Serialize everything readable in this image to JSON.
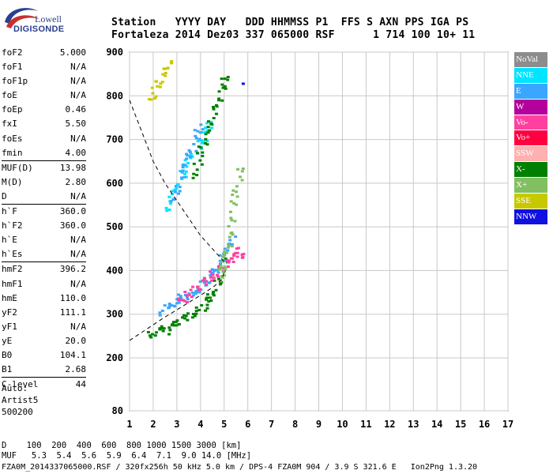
{
  "logo": {
    "line1": "Lowell",
    "line2": "DIGISONDE"
  },
  "header": {
    "line1": "Station   YYYY DAY   DDD HHMMSS P1  FFS S AXN PPS IGA PS",
    "line2": "Fortaleza 2014 Dez03 337 065000 RSF      1 714 100 10+ 11"
  },
  "params": [
    {
      "name": "foF2",
      "value": "5.000",
      "sep": false
    },
    {
      "name": "foF1",
      "value": "N/A",
      "sep": false
    },
    {
      "name": "foF1p",
      "value": "N/A",
      "sep": false
    },
    {
      "name": "foE",
      "value": "N/A",
      "sep": false
    },
    {
      "name": "foEp",
      "value": "0.46",
      "sep": false
    },
    {
      "name": "fxI",
      "value": "5.50",
      "sep": false
    },
    {
      "name": "foEs",
      "value": "N/A",
      "sep": false
    },
    {
      "name": "fmin",
      "value": "4.00",
      "sep": false
    },
    {
      "name": "MUF(D)",
      "value": "13.98",
      "sep": true
    },
    {
      "name": "M(D)",
      "value": "2.80",
      "sep": false
    },
    {
      "name": "D",
      "value": "N/A",
      "sep": false
    },
    {
      "name": "h`F",
      "value": "360.0",
      "sep": true
    },
    {
      "name": "h`F2",
      "value": "360.0",
      "sep": false
    },
    {
      "name": "h`E",
      "value": "N/A",
      "sep": false
    },
    {
      "name": "h`Es",
      "value": "N/A",
      "sep": false
    },
    {
      "name": "hmF2",
      "value": "396.2",
      "sep": true
    },
    {
      "name": "hmF1",
      "value": "N/A",
      "sep": false
    },
    {
      "name": "hmE",
      "value": "110.0",
      "sep": false
    },
    {
      "name": "yF2",
      "value": "111.1",
      "sep": false
    },
    {
      "name": "yF1",
      "value": "N/A",
      "sep": false
    },
    {
      "name": "yE",
      "value": "20.0",
      "sep": false
    },
    {
      "name": "B0",
      "value": "104.1",
      "sep": false
    },
    {
      "name": "B1",
      "value": "2.68",
      "sep": false
    },
    {
      "name": "C-level",
      "value": "44",
      "sep": true
    }
  ],
  "autoscale": [
    "Auto:",
    "Artist5",
    "500200"
  ],
  "legend": [
    {
      "label": "NoVal",
      "color": "#8c8c8c"
    },
    {
      "label": "NNE",
      "color": "#00e4ff"
    },
    {
      "label": "E",
      "color": "#3aa6ff"
    },
    {
      "label": "W",
      "color": "#b4009c"
    },
    {
      "label": "Vo-",
      "color": "#ff40a0"
    },
    {
      "label": "Vo+",
      "color": "#ff0040"
    },
    {
      "label": "SSW",
      "color": "#ffb0b0"
    },
    {
      "label": "X-",
      "color": "#008000"
    },
    {
      "label": "X+",
      "color": "#80c060"
    },
    {
      "label": "SSE",
      "color": "#c8c800"
    },
    {
      "label": "NNW",
      "color": "#1010e0"
    }
  ],
  "footer": {
    "d_row": "D    100  200  400  600  800 1000 1500 3000 [km]",
    "muf_row": "MUF   5.3  5.4  5.6  5.9  6.4  7.1  9.0 14.0 [MHz]",
    "info": "FZA0M_2014337065000.RSF / 320fx256h 50 kHz 5.0 km / DPS-4 FZA0M 904 / 3.9 S 321.6 E   Ion2Png 1.3.20"
  },
  "chart_data": {
    "type": "scatter",
    "x_ticks": [
      1,
      2,
      3,
      4,
      5,
      6,
      7,
      8,
      9,
      10,
      11,
      12,
      13,
      14,
      15,
      16,
      17
    ],
    "y_ticks": [
      80,
      200,
      300,
      400,
      500,
      600,
      700,
      800,
      900
    ],
    "xlim": [
      1,
      17
    ],
    "ylim": [
      80,
      900
    ],
    "grid": true,
    "traces": [
      {
        "legend": "X-",
        "x": [
          1.8,
          2.4,
          3.0,
          3.6,
          4.2,
          4.6,
          5.0
        ],
        "y": [
          255,
          265,
          285,
          300,
          330,
          360,
          420
        ]
      },
      {
        "legend": "E",
        "x": [
          2.3,
          2.9,
          3.5,
          4.0,
          4.5,
          4.9,
          5.3
        ],
        "y": [
          300,
          330,
          350,
          370,
          395,
          430,
          470
        ]
      },
      {
        "legend": "Vo-",
        "x": [
          3.0,
          3.6,
          4.3,
          4.9,
          5.4,
          5.7
        ],
        "y": [
          330,
          355,
          385,
          410,
          430,
          450
        ]
      },
      {
        "legend": "X+",
        "x": [
          4.8,
          5.0,
          5.2,
          5.4,
          5.6
        ],
        "y": [
          380,
          420,
          480,
          560,
          640
        ]
      },
      {
        "legend": "NNE",
        "x": [
          2.5,
          3.0,
          3.5,
          4.0,
          4.3
        ],
        "y": [
          540,
          600,
          650,
          700,
          740
        ]
      },
      {
        "legend": "E",
        "x": [
          2.7,
          3.2,
          3.6,
          4.0
        ],
        "y": [
          560,
          620,
          680,
          740
        ]
      },
      {
        "legend": "X-",
        "x": [
          3.6,
          4.0,
          4.4,
          4.8,
          5.0
        ],
        "y": [
          620,
          680,
          740,
          800,
          850
        ]
      },
      {
        "legend": "SSE",
        "x": [
          1.9,
          2.2,
          2.6
        ],
        "y": [
          800,
          835,
          880
        ]
      },
      {
        "legend": "NNW",
        "x": [
          5.7
        ],
        "y": [
          825
        ]
      }
    ],
    "profile_curve": {
      "x": [
        1.0,
        1.7,
        2.4,
        3.0,
        3.6,
        4.2,
        4.6,
        4.9,
        5.0
      ],
      "y": [
        240,
        265,
        290,
        310,
        330,
        350,
        365,
        380,
        396
      ]
    },
    "muf_curve": {
      "x": [
        1.0,
        1.5,
        2.0,
        2.5,
        3.0,
        3.5,
        4.0,
        4.5,
        5.0
      ],
      "y": [
        790,
        720,
        650,
        600,
        560,
        520,
        480,
        450,
        420
      ]
    }
  }
}
